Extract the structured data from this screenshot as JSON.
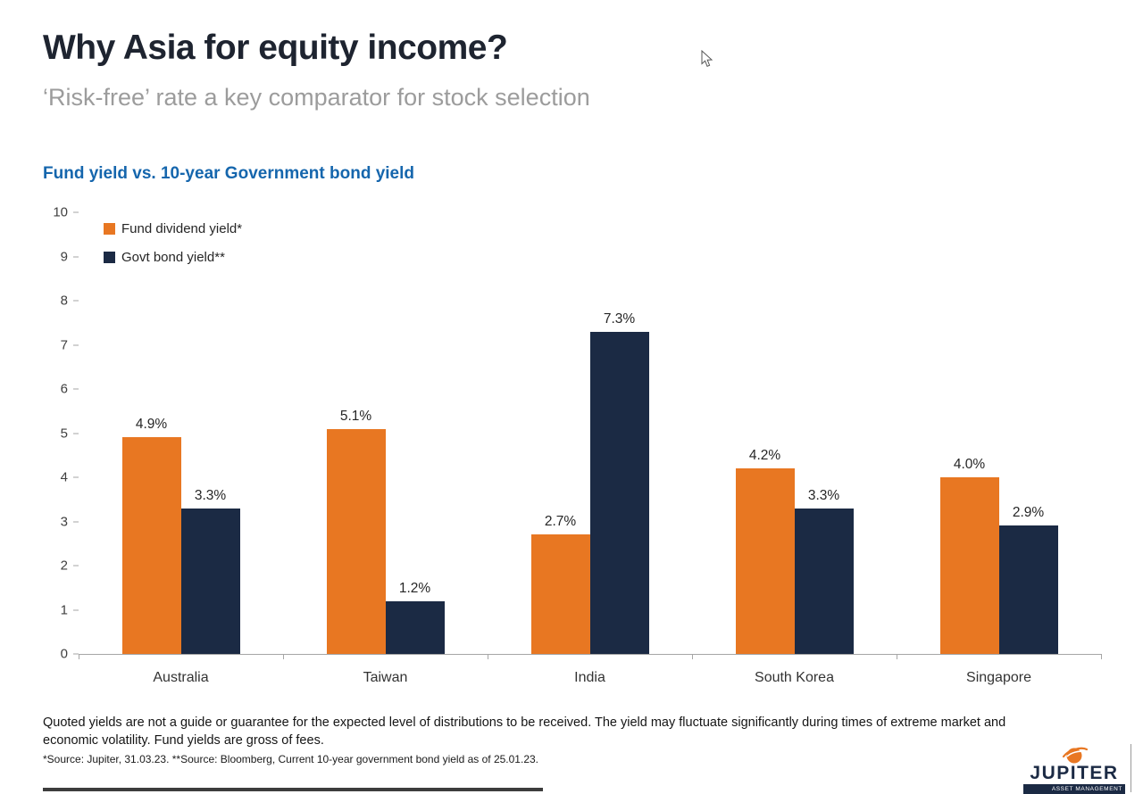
{
  "slide": {
    "title": "Why Asia for equity income?",
    "subtitle": "‘Risk-free’ rate a key comparator for stock selection"
  },
  "chart_data": {
    "type": "bar",
    "title": "Fund yield vs. 10-year Government bond yield",
    "categories": [
      "Australia",
      "Taiwan",
      "India",
      "South Korea",
      "Singapore"
    ],
    "series": [
      {
        "name": "Fund dividend yield*",
        "color": "#E87722",
        "values": [
          4.9,
          5.1,
          2.7,
          4.2,
          4.0
        ],
        "labels": [
          "4.9%",
          "5.1%",
          "2.7%",
          "4.2%",
          "4.0%"
        ]
      },
      {
        "name": "Govt bond yield**",
        "color": "#1B2A44",
        "values": [
          3.3,
          1.2,
          7.3,
          3.3,
          2.9
        ],
        "labels": [
          "3.3%",
          "1.2%",
          "7.3%",
          "3.3%",
          "2.9%"
        ]
      }
    ],
    "ylim": [
      0,
      10
    ],
    "yticks": [
      0,
      1,
      2,
      3,
      4,
      5,
      6,
      7,
      8,
      9,
      10
    ],
    "xlabel": "",
    "ylabel": "",
    "grid": false,
    "legend_position": "top-left"
  },
  "footer": {
    "disclaimer": "Quoted yields are not a guide or guarantee for the expected level of distributions to be received. The yield may fluctuate significantly during times of extreme market and economic volatility. Fund yields are gross of fees.",
    "source": "*Source: Jupiter, 31.03.23.  **Source: Bloomberg, Current 10-year government bond yield as of 25.01.23."
  },
  "logo": {
    "wordmark": "JUPITER",
    "tagline": "ASSET MANAGEMENT",
    "orange": "#E87722",
    "navy": "#1B2A44"
  }
}
